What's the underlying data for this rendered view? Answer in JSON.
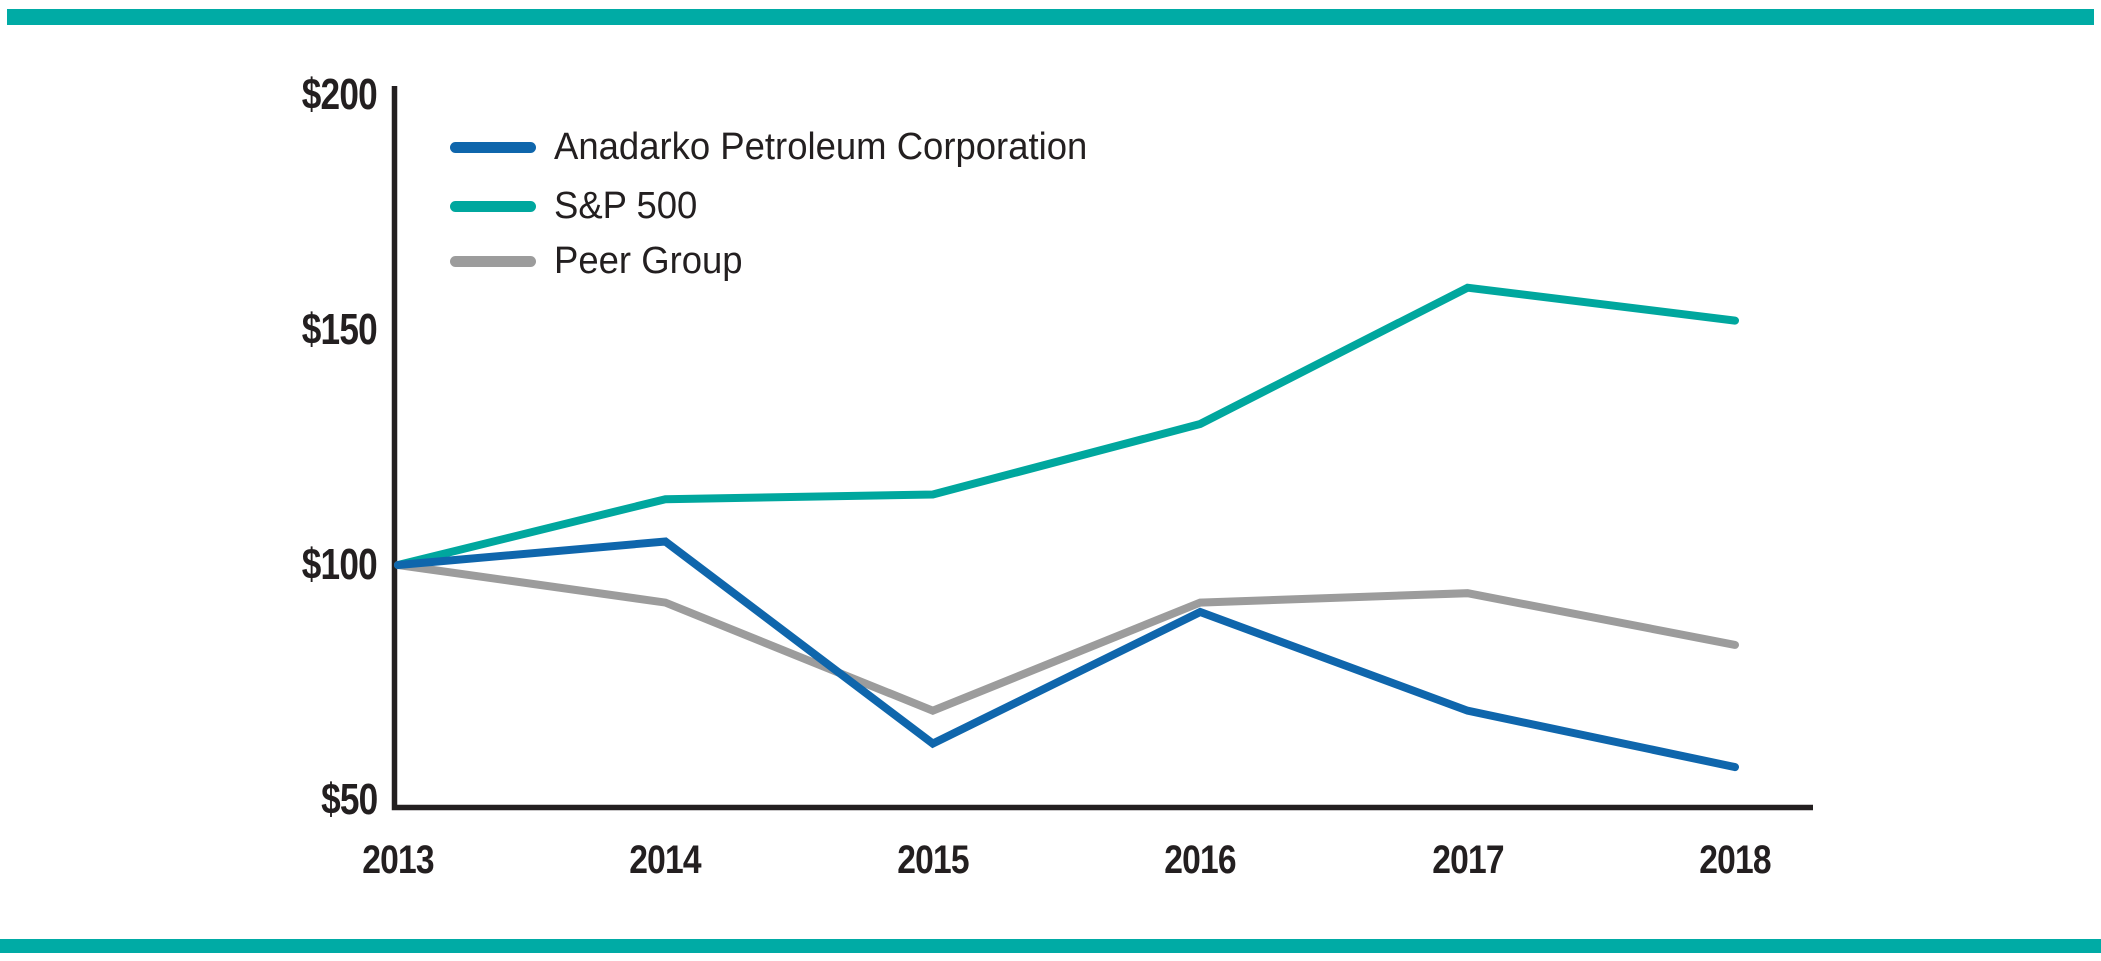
{
  "page": {
    "background": "#FFFFFF",
    "accent_bar_color": "#00ABA5",
    "text_color": "#231F20"
  },
  "chart_data": {
    "type": "line",
    "title": "",
    "xlabel": "",
    "ylabel": "",
    "x_labels": [
      "2013",
      "2014",
      "2015",
      "2016",
      "2017",
      "2018"
    ],
    "series": [
      {
        "name": "Anadarko Petroleum Corporation",
        "color": "#0F66AC",
        "values": [
          100,
          105,
          62,
          90,
          69,
          57
        ]
      },
      {
        "name": "S&P 500",
        "color": "#00A79E",
        "values": [
          100,
          114,
          115,
          130,
          159,
          152
        ]
      },
      {
        "name": "Peer Group",
        "color": "#9C9C9C",
        "values": [
          100,
          92,
          69,
          92,
          94,
          83
        ]
      }
    ],
    "ylim": [
      50,
      200
    ],
    "ytick_values": [
      200,
      150,
      100,
      50
    ],
    "ytick_labels": [
      "$200",
      "$150",
      "$100",
      "$50"
    ],
    "axis_color": "#231F20",
    "grid": false,
    "legend_position": "top-left-inside"
  }
}
